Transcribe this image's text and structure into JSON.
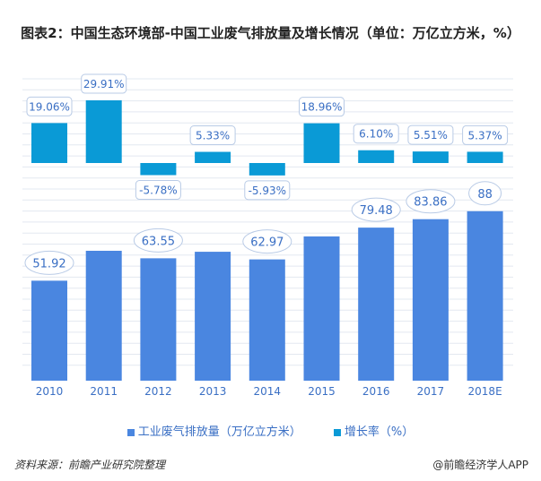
{
  "title": "图表2：中国生态环境部-中国工业废气排放量及增长情况（单位：万亿立方米，%）",
  "source": "资料来源：前瞻产业研究院整理",
  "credit": "@前瞻经济学人APP",
  "chart_data": {
    "type": "bar",
    "title": "图表2：中国生态环境部-中国工业废气排放量及增长情况（单位：万亿立方米，%）",
    "categories": [
      "2010",
      "2011",
      "2012",
      "2013",
      "2014",
      "2015",
      "2016",
      "2017",
      "2018E"
    ],
    "series": [
      {
        "name": "工业废气排放量（万亿立方米）",
        "color": "#4a86e0",
        "values": [
          51.92,
          67.45,
          63.55,
          66.94,
          62.97,
          74.91,
          79.48,
          83.86,
          88
        ],
        "labels": [
          "51.92",
          "",
          "63.55",
          "",
          "62.97",
          "",
          "79.48",
          "83.86",
          "88"
        ]
      },
      {
        "name": "增长率（%）",
        "color": "#0a9ad6",
        "values": [
          19.06,
          29.91,
          -5.78,
          5.33,
          -5.93,
          18.96,
          6.1,
          5.51,
          5.37
        ],
        "labels": [
          "19.06%",
          "29.91%",
          "-5.78%",
          "5.33%",
          "-5.93%",
          "18.96%",
          "6.10%",
          "5.51%",
          "5.37%"
        ]
      }
    ],
    "legend": "bottom",
    "grid": true
  }
}
